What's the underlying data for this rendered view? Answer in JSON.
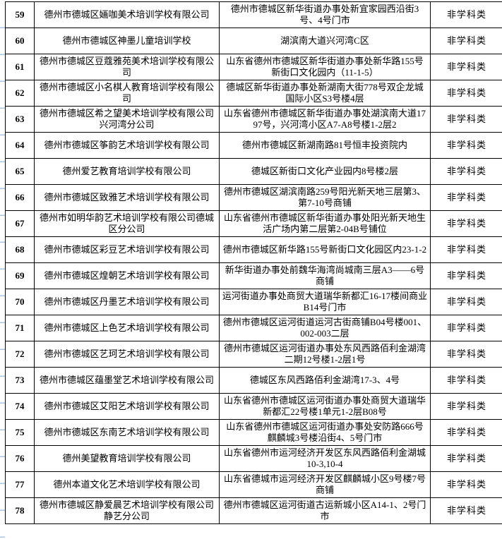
{
  "colors": {
    "table_border": "#000000",
    "text": "#000000",
    "muted_text": "#8c8c8c",
    "gridline_blue": "#a9c4e3",
    "background": "#ffffff"
  },
  "table": {
    "rows": [
      {
        "no": "59",
        "name": "德州市德城区婳咖美术培训学校有限公司",
        "address": "德州市德城区新华街道办事处新宜家园西沿街3号、4号门市",
        "category": "非学科类",
        "address_muted": false
      },
      {
        "no": "60",
        "name": "德州市德城区神墨儿童培训学校",
        "address": "湖滨南大道兴河湾C区",
        "category": "非学科类",
        "address_muted": false
      },
      {
        "no": "61",
        "name": "德州市德城区豆蔻雅苑美术培训学校有限公司",
        "address": "山东省德州市德城区新华街道办事处新华路155号新街口文化园内（11-1-5）",
        "category": "非学科类",
        "address_muted": false
      },
      {
        "no": "62",
        "name": "德州市德城区小名棋人教育培训学校有限公司",
        "address": "德城区新华街道办事处新湖南大街778号双企龙城国际小区S3号楼4层",
        "category": "非学科类",
        "address_muted": false
      },
      {
        "no": "63",
        "name": "德州市德城区希之望美术培训学校有限公司兴河湾分公司",
        "address": "山东省德州市德城区新华街道办事处湖滨南大道1797号，兴河湾小区A7-A8号楼1-2层2",
        "category": "非学科类",
        "address_muted": false
      },
      {
        "no": "64",
        "name": "德州市德城区筝韵艺术培训学校有限公司",
        "address": "德州市德城区新湖南路81号恒丰投资院内",
        "category": "非学科类",
        "address_muted": false
      },
      {
        "no": "65",
        "name": "德州爱艺教育培训学校有限公司",
        "address": "德城区新街口文化产业园内8号楼2层",
        "category": "非学科类",
        "address_muted": false
      },
      {
        "no": "66",
        "name": "德州市德城区致雅艺术培训学校有限公司",
        "address": "德州市德城区湖滨南路259号阳光新天地三层第3、第7-10号商铺",
        "category": "非学科类",
        "address_muted": false
      },
      {
        "no": "67",
        "name": "德州市如明华韵艺术培训学校有限公司德城区分公司",
        "address": "山东省德州市德城区新华街道办事处阳光新天地生活广场内第二层第2-04B号铺位",
        "category": "非学科类",
        "address_muted": false
      },
      {
        "no": "68",
        "name": "德州市德城区彩豆艺术培训学校有限公司",
        "address": "德州市德城区新华路155号新街口文化园区内23-1-2",
        "category": "非学科类",
        "address_muted": false
      },
      {
        "no": "69",
        "name": "德州市德城区煌朝艺术培训学校有限公司",
        "address": "新华街道办事处前魏华海湾尚城南三层A3——6号商铺",
        "category": "非学科类",
        "address_muted": true
      },
      {
        "no": "70",
        "name": "德州市德城区丹墨艺术培训学校有限公司",
        "address": "运河街道办事处商贸大道瑞华新都汇16-17楼间商业B14号门市",
        "category": "非学科类",
        "address_muted": false
      },
      {
        "no": "71",
        "name": "德州市德城区上色艺术培训学校有限公司",
        "address": "德州市德城区运河街道运河古街商铺B04号楼001、002-003二层",
        "category": "非学科类",
        "address_muted": false
      },
      {
        "no": "72",
        "name": "德州市德城区艺珂艺术培训学校有限公司",
        "address": "德州市德城区运河街道办事处东风西路佰利金湖湾二期12号楼1-2层1号",
        "category": "非学科类",
        "address_muted": false
      },
      {
        "no": "73",
        "name": "德州市德城区蕴墨堂艺术培训学校有限公司",
        "address": "德城区东风西路佰利金湖湾17-3、4号",
        "category": "非学科类",
        "address_muted": false
      },
      {
        "no": "74",
        "name": "德州市德城区艾阳艺术培训学校有限公司",
        "address": "山东省德州市德城区运河街道办事处商贸大道瑞华新都汇22号楼1单元1-2层B08号",
        "category": "非学科类",
        "address_muted": false
      },
      {
        "no": "75",
        "name": "德州市德城区东南艺术培训学校有限公司",
        "address": "山东省德州市德城区运河街道办事处安防路666号麒麟城3号楼沿街4、5号门市",
        "category": "非学科类",
        "address_muted": false
      },
      {
        "no": "76",
        "name": "德州美望教育培训学校有限公司",
        "address": "山东省德州市运河经济开发区东风西路佰利金湖城10-3,10-4",
        "category": "非学科类",
        "address_muted": false
      },
      {
        "no": "77",
        "name": "德州本道文化艺术培训学校有限公司",
        "address": "山东省德城市运河经济开发区麒麟城小区9号楼7号商铺",
        "category": "非学科类",
        "address_muted": false
      },
      {
        "no": "78",
        "name": "德州市德城区静爱晨艺术培训学校有限公司静艺分公司",
        "address": "德州市德城区运河街道古运新城小区A14-1、2号门市",
        "category": "非学科类",
        "address_muted": false
      }
    ]
  }
}
